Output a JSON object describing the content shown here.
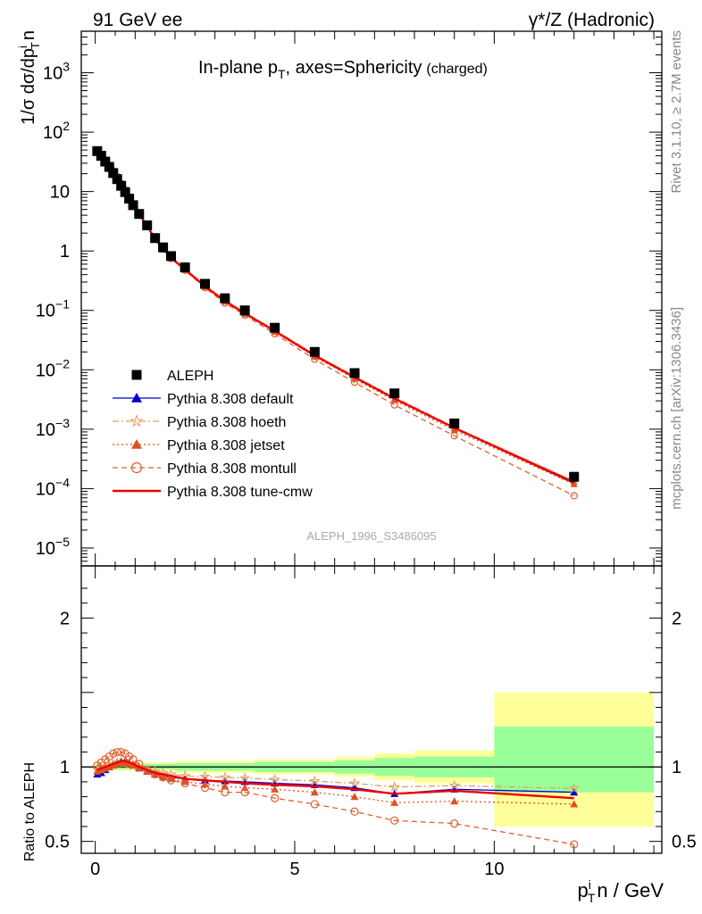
{
  "header": {
    "left": "91 GeV ee",
    "right": "γ*/Z (Hadronic)"
  },
  "side_text": {
    "rivet": "Rivet 3.1.10, ≥ 2.7M events",
    "mcplots": "mcplots.cern.ch [arXiv:1306.3436]"
  },
  "chart_data": [
    {
      "type": "scatter",
      "title": "In-plane pT, axes=Sphericity (charged)",
      "title_parts": {
        "main": "In-plane p",
        "sub": "T",
        "rest": ", axes=Sphericity",
        "small": "(charged)"
      },
      "ylabel": "1/σ dσ/dpᵢT n",
      "ylabel_parts": {
        "a": "1/σ dσ/dp",
        "sup": "i",
        "sub": "T",
        "b": "n"
      },
      "xlim": [
        -0.35,
        14.2
      ],
      "ylim": [
        5e-06,
        5000
      ],
      "yscale": "log",
      "x_ticks": [
        0,
        5,
        10
      ],
      "y_ticks": [
        {
          "v": 1e-05,
          "m": "10",
          "e": "−5"
        },
        {
          "v": 0.0001,
          "m": "10",
          "e": "−4"
        },
        {
          "v": 0.001,
          "m": "10",
          "e": "−3"
        },
        {
          "v": 0.01,
          "m": "10",
          "e": "−2"
        },
        {
          "v": 0.1,
          "m": "10",
          "e": "−1"
        },
        {
          "v": 1,
          "m": "1",
          "e": ""
        },
        {
          "v": 10,
          "m": "10",
          "e": ""
        },
        {
          "v": 100,
          "m": "10",
          "e": "2"
        },
        {
          "v": 1000,
          "m": "10",
          "e": "3"
        }
      ],
      "watermark": "ALEPH_1996_S3486095",
      "legend_position": "bottom-left",
      "x": [
        0.05,
        0.15,
        0.25,
        0.35,
        0.45,
        0.55,
        0.65,
        0.75,
        0.85,
        0.95,
        1.1,
        1.3,
        1.5,
        1.7,
        1.9,
        2.25,
        2.75,
        3.25,
        3.75,
        4.5,
        5.5,
        6.5,
        7.5,
        9.0,
        12.0
      ],
      "series": [
        {
          "name": "ALEPH",
          "marker": "square",
          "color": "#000000",
          "style": "none",
          "values": [
            48,
            40,
            32,
            26,
            20.5,
            16.2,
            12.5,
            9.8,
            7.6,
            5.9,
            4.2,
            2.7,
            1.65,
            1.15,
            0.82,
            0.53,
            0.28,
            0.16,
            0.1,
            0.051,
            0.02,
            0.0088,
            0.004,
            0.00125,
            0.000158
          ]
        },
        {
          "name": "Pythia 8.308 default",
          "marker": "triangle",
          "color": "#0000cc",
          "style": "solid"
        },
        {
          "name": "Pythia 8.308 hoeth",
          "marker": "star",
          "color": "#e0a060",
          "style": "dashdot"
        },
        {
          "name": "Pythia 8.308 jetset",
          "marker": "triangle",
          "color": "#e05020",
          "style": "dotted"
        },
        {
          "name": "Pythia 8.308 montull",
          "marker": "circle-open",
          "color": "#e06030",
          "style": "dashed"
        },
        {
          "name": "Pythia 8.308 tune-cmw",
          "marker": "none",
          "color": "#ee0000",
          "style": "solid"
        }
      ]
    },
    {
      "type": "line",
      "ylabel": "Ratio to ALEPH",
      "xlabel": "pᵢT n / GeV",
      "xlabel_parts": {
        "a": "p",
        "sup": "i",
        "sub": "T",
        "b": "n / GeV"
      },
      "xlim": [
        -0.35,
        14.2
      ],
      "ylim": [
        0.42,
        2.35
      ],
      "x_ticks": [
        0,
        5,
        10
      ],
      "y_ticks": [
        0.5,
        1,
        2
      ],
      "bands": [
        {
          "x0": 0.0,
          "x1": 1.0,
          "y0": 0.975,
          "y1": 1.025,
          "y0i": 0.985,
          "y1i": 1.015
        },
        {
          "x0": 1.0,
          "x1": 2.0,
          "y0": 0.975,
          "y1": 1.03,
          "y0i": 0.985,
          "y1i": 1.02
        },
        {
          "x0": 2.0,
          "x1": 4.0,
          "y0": 0.96,
          "y1": 1.04,
          "y0i": 0.975,
          "y1i": 1.025
        },
        {
          "x0": 4.0,
          "x1": 6.0,
          "y0": 0.95,
          "y1": 1.05,
          "y0i": 0.965,
          "y1i": 1.035
        },
        {
          "x0": 6.0,
          "x1": 7.0,
          "y0": 0.935,
          "y1": 1.065,
          "y0i": 0.955,
          "y1i": 1.045
        },
        {
          "x0": 7.0,
          "x1": 8.0,
          "y0": 0.91,
          "y1": 1.09,
          "y0i": 0.94,
          "y1i": 1.06
        },
        {
          "x0": 8.0,
          "x1": 10.0,
          "y0": 0.89,
          "y1": 1.11,
          "y0i": 0.93,
          "y1i": 1.07
        },
        {
          "x0": 10.0,
          "x1": 14.0,
          "y0": 0.6,
          "y1": 1.5,
          "y0i": 0.83,
          "y1i": 1.27
        }
      ],
      "series": [
        {
          "name": "Pythia 8.308 default",
          "values": [
            0.95,
            0.96,
            0.98,
            1.0,
            1.02,
            1.03,
            1.04,
            1.04,
            1.03,
            1.02,
            1.0,
            0.97,
            0.95,
            0.94,
            0.93,
            0.92,
            0.91,
            0.905,
            0.9,
            0.89,
            0.88,
            0.86,
            0.82,
            0.85,
            0.83
          ]
        },
        {
          "name": "Pythia 8.308 hoeth",
          "values": [
            0.98,
            0.99,
            1.0,
            1.01,
            1.02,
            1.03,
            1.03,
            1.03,
            1.02,
            1.01,
            1.0,
            0.98,
            0.97,
            0.96,
            0.95,
            0.94,
            0.935,
            0.93,
            0.925,
            0.915,
            0.905,
            0.89,
            0.865,
            0.875,
            0.855
          ]
        },
        {
          "name": "Pythia 8.308 jetset",
          "values": [
            0.97,
            0.98,
            0.99,
            1.0,
            1.01,
            1.02,
            1.03,
            1.03,
            1.02,
            1.01,
            0.99,
            0.97,
            0.95,
            0.93,
            0.92,
            0.9,
            0.885,
            0.87,
            0.86,
            0.85,
            0.83,
            0.8,
            0.76,
            0.77,
            0.75
          ]
        },
        {
          "name": "Pythia 8.308 montull",
          "values": [
            1.01,
            1.03,
            1.05,
            1.07,
            1.09,
            1.1,
            1.1,
            1.09,
            1.07,
            1.05,
            1.02,
            0.98,
            0.95,
            0.93,
            0.91,
            0.89,
            0.86,
            0.83,
            0.83,
            0.79,
            0.75,
            0.7,
            0.64,
            0.62,
            0.48
          ]
        },
        {
          "name": "Pythia 8.308 tune-cmw",
          "values": [
            0.98,
            0.99,
            1.0,
            1.01,
            1.02,
            1.03,
            1.04,
            1.04,
            1.03,
            1.02,
            1.0,
            0.98,
            0.96,
            0.95,
            0.94,
            0.92,
            0.91,
            0.9,
            0.89,
            0.88,
            0.87,
            0.85,
            0.82,
            0.84,
            0.79
          ]
        }
      ]
    }
  ]
}
